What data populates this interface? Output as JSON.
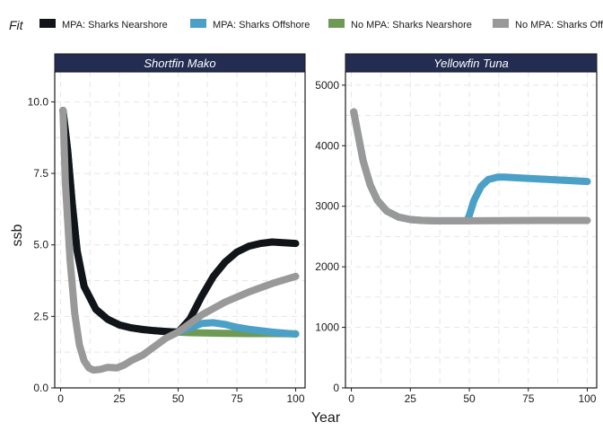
{
  "chart_data": {
    "type": "line",
    "legend": {
      "title": "Fit",
      "position": "top",
      "entries": [
        {
          "name": "MPA: Sharks Nearshore",
          "color": "#111418"
        },
        {
          "name": "MPA: Sharks Offshore",
          "color": "#4aa0c6"
        },
        {
          "name": "No MPA: Sharks Nearshore",
          "color": "#6f9a56"
        },
        {
          "name": "No MPA: Sharks Offshore",
          "color": "#999999"
        }
      ]
    },
    "xlabel": "Year",
    "ylabel": "ssb",
    "xlim": [
      -2.5,
      104
    ],
    "xticks": [
      0,
      25,
      50,
      75,
      100
    ],
    "panels": [
      {
        "title": "Shortfin Mako",
        "ylim": [
          0,
          11.05
        ],
        "yticks": [
          0.0,
          2.5,
          5.0,
          7.5,
          10.0
        ],
        "ytick_labels": [
          "0.0",
          "2.5",
          "5.0",
          "7.5",
          "10.0"
        ],
        "series": [
          {
            "name": "No MPA: Sharks Nearshore",
            "x": [
              1,
              3,
              5,
              7,
              10,
              15,
              20,
              25,
              30,
              35,
              40,
              45,
              50,
              55,
              60,
              70,
              80,
              90,
              100
            ],
            "y": [
              9.7,
              8.3,
              6.4,
              4.8,
              3.55,
              2.75,
              2.4,
              2.2,
              2.1,
              2.04,
              2.0,
              1.97,
              1.95,
              1.93,
              1.92,
              1.91,
              1.9,
              1.9,
              1.89
            ]
          },
          {
            "name": "MPA: Sharks Offshore",
            "x": [
              1,
              3,
              5,
              7,
              10,
              15,
              20,
              25,
              30,
              35,
              40,
              45,
              50,
              55,
              60,
              65,
              70,
              75,
              80,
              90,
              100
            ],
            "y": [
              9.7,
              8.3,
              6.4,
              4.8,
              3.55,
              2.75,
              2.4,
              2.2,
              2.1,
              2.04,
              2.0,
              1.97,
              1.95,
              2.1,
              2.25,
              2.28,
              2.22,
              2.12,
              2.05,
              1.95,
              1.88
            ]
          },
          {
            "name": "MPA: Sharks Nearshore",
            "x": [
              1,
              3,
              5,
              7,
              10,
              15,
              20,
              25,
              30,
              35,
              40,
              45,
              50,
              55,
              60,
              65,
              70,
              75,
              80,
              85,
              90,
              100
            ],
            "y": [
              9.7,
              8.3,
              6.4,
              4.8,
              3.55,
              2.75,
              2.4,
              2.2,
              2.1,
              2.04,
              2.0,
              1.97,
              1.95,
              2.4,
              3.2,
              3.9,
              4.4,
              4.75,
              4.95,
              5.05,
              5.1,
              5.05
            ]
          },
          {
            "name": "No MPA: Sharks Offshore",
            "x": [
              1,
              2,
              4,
              6,
              8,
              10,
              12,
              14,
              17,
              20,
              24,
              27,
              30,
              35,
              40,
              45,
              50,
              55,
              60,
              70,
              80,
              90,
              100
            ],
            "y": [
              9.7,
              7.2,
              4.5,
              2.6,
              1.5,
              0.95,
              0.7,
              0.62,
              0.65,
              0.72,
              0.7,
              0.8,
              0.95,
              1.15,
              1.45,
              1.75,
              1.95,
              2.25,
              2.55,
              3.0,
              3.35,
              3.65,
              3.9
            ]
          }
        ]
      },
      {
        "title": "Yellowfin Tuna",
        "ylim": [
          0,
          5220
        ],
        "yticks": [
          0,
          1000,
          2000,
          3000,
          4000,
          5000
        ],
        "ytick_labels": [
          "0",
          "1000",
          "2000",
          "3000",
          "4000",
          "5000"
        ],
        "series": [
          {
            "name": "MPA: Sharks Offshore",
            "x": [
              1,
              3,
              5,
              8,
              11,
              15,
              20,
              25,
              30,
              35,
              40,
              45,
              49,
              50,
              52,
              55,
              58,
              62,
              65,
              70,
              80,
              90,
              100
            ],
            "y": [
              4560,
              4150,
              3750,
              3350,
              3100,
              2920,
              2820,
              2780,
              2765,
              2760,
              2760,
              2760,
              2760,
              2850,
              3100,
              3330,
              3440,
              3480,
              3480,
              3470,
              3450,
              3430,
              3410
            ]
          },
          {
            "name": "No MPA: Sharks Offshore",
            "x": [
              1,
              3,
              5,
              8,
              11,
              15,
              20,
              25,
              30,
              35,
              40,
              50,
              60,
              70,
              80,
              90,
              100
            ],
            "y": [
              4560,
              4150,
              3750,
              3350,
              3100,
              2920,
              2820,
              2780,
              2765,
              2760,
              2760,
              2760,
              2762,
              2764,
              2765,
              2765,
              2765
            ]
          }
        ]
      }
    ]
  }
}
